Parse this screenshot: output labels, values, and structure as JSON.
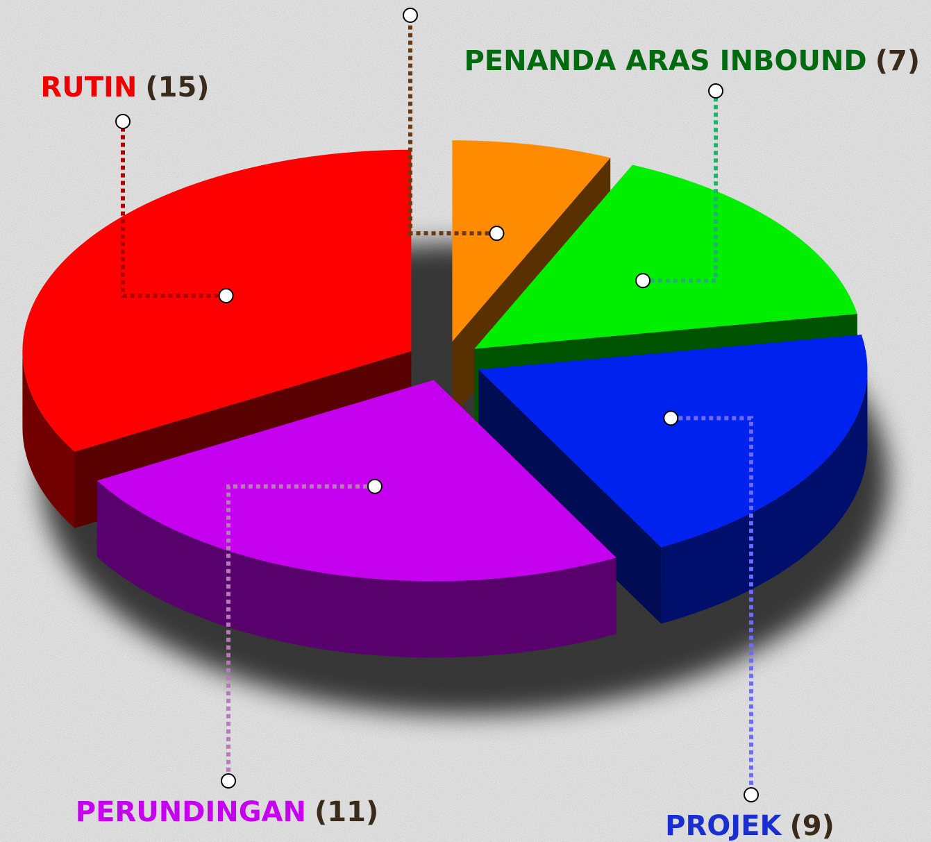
{
  "chart_data": {
    "type": "pie3d",
    "categories": [
      null,
      "PENANDA ARAS INBOUND",
      "PROJEK",
      "PERUNDINGAN",
      "RUTIN"
    ],
    "values": [
      3,
      7,
      9,
      11,
      15
    ],
    "value_labels": [
      null,
      "(7)",
      "(9)",
      "(11)",
      "(15)"
    ],
    "colors": [
      "#ff8c00",
      "#00ee00",
      "#0022ee",
      "#c400ee",
      "#ff0000"
    ],
    "label_colors": [
      "#7a4a1e",
      "#006a10",
      "#1a2fd0",
      "#c400ee",
      "#ee0000"
    ],
    "leader_colors": [
      "#6b3a12",
      "#1db56b",
      "#6b6bff",
      "#b87ab8",
      "#b00000"
    ]
  }
}
